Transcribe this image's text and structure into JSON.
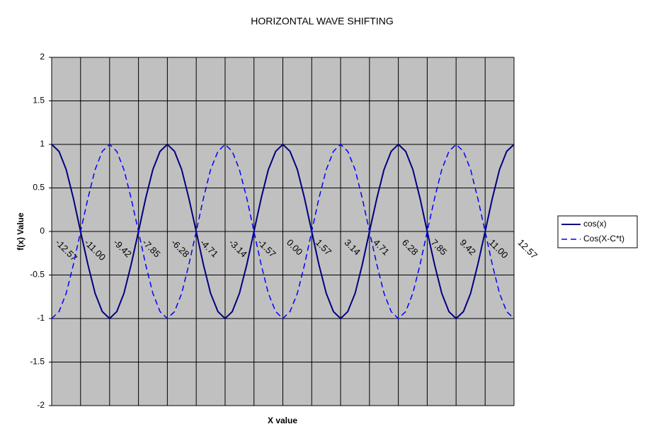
{
  "chart_data": {
    "type": "line",
    "title": "HORIZONTAL WAVE SHIFTING",
    "x_label": "X value",
    "y_label": "f(x) Value",
    "x": [
      -12.57,
      -12.17,
      -11.78,
      -11.39,
      -11.0,
      -10.6,
      -10.21,
      -9.82,
      -9.42,
      -9.03,
      -8.64,
      -8.25,
      -7.85,
      -7.46,
      -7.07,
      -6.68,
      -6.28,
      -5.89,
      -5.5,
      -5.11,
      -4.71,
      -4.32,
      -3.93,
      -3.53,
      -3.14,
      -2.75,
      -2.36,
      -1.96,
      -1.57,
      -1.18,
      -0.79,
      -0.39,
      0,
      0.39,
      0.79,
      1.18,
      1.57,
      1.96,
      2.36,
      2.75,
      3.14,
      3.53,
      3.93,
      4.32,
      4.71,
      5.11,
      5.5,
      5.89,
      6.28,
      6.68,
      7.07,
      7.46,
      7.85,
      8.25,
      8.64,
      9.03,
      9.42,
      9.82,
      10.21,
      10.6,
      11.0,
      11.39,
      11.78,
      12.17,
      12.57
    ],
    "series": [
      {
        "name": "cos(x)",
        "color": "#000080",
        "dash": false,
        "values": [
          1,
          0.92,
          0.71,
          0.38,
          0,
          -0.38,
          -0.71,
          -0.92,
          -1,
          -0.92,
          -0.71,
          -0.38,
          0,
          0.38,
          0.71,
          0.92,
          1,
          0.92,
          0.71,
          0.38,
          0,
          -0.38,
          -0.71,
          -0.92,
          -1,
          -0.92,
          -0.71,
          -0.38,
          0,
          0.38,
          0.71,
          0.92,
          1,
          0.92,
          0.71,
          0.38,
          0,
          -0.38,
          -0.71,
          -0.92,
          -1,
          -0.92,
          -0.71,
          -0.38,
          0,
          0.38,
          0.71,
          0.92,
          1,
          0.92,
          0.71,
          0.38,
          0,
          -0.38,
          -0.71,
          -0.92,
          -1,
          -0.92,
          -0.71,
          -0.38,
          0,
          0.38,
          0.71,
          0.92,
          1
        ]
      },
      {
        "name": "Cos(X-C*t)",
        "color": "#0000ff",
        "dash": true,
        "values": [
          -1,
          -0.92,
          -0.71,
          -0.38,
          0,
          0.38,
          0.71,
          0.92,
          1,
          0.92,
          0.71,
          0.38,
          0,
          -0.38,
          -0.71,
          -0.92,
          -1,
          -0.92,
          -0.71,
          -0.38,
          0,
          0.38,
          0.71,
          0.92,
          1,
          0.92,
          0.71,
          0.38,
          0,
          -0.38,
          -0.71,
          -0.92,
          -1,
          -0.92,
          -0.71,
          -0.38,
          0,
          0.38,
          0.71,
          0.92,
          1,
          0.92,
          0.71,
          0.38,
          0,
          -0.38,
          -0.71,
          -0.92,
          -1,
          -0.92,
          -0.71,
          -0.38,
          0,
          0.38,
          0.71,
          0.92,
          1,
          0.92,
          0.71,
          0.38,
          0,
          -0.38,
          -0.71,
          -0.92,
          -1
        ]
      }
    ],
    "xlim": [
      -12.57,
      12.57
    ],
    "xticks": [
      -12.57,
      {
        "value": -11,
        "label": "-11.00"
      },
      -9.42,
      -7.85,
      -6.28,
      -4.71,
      -3.14,
      -1.57,
      {
        "value": 0,
        "label": "0.00"
      },
      1.57,
      3.14,
      4.71,
      6.28,
      7.85,
      9.42,
      {
        "value": 11,
        "label": "11.00"
      },
      12.57
    ],
    "ylim": [
      -2,
      2
    ],
    "yticks": [
      -2,
      -1.5,
      -1,
      -0.5,
      0,
      0.5,
      1,
      1.5,
      2
    ],
    "grid": true,
    "plot_background": "#c0c0c0",
    "legend": "right"
  }
}
